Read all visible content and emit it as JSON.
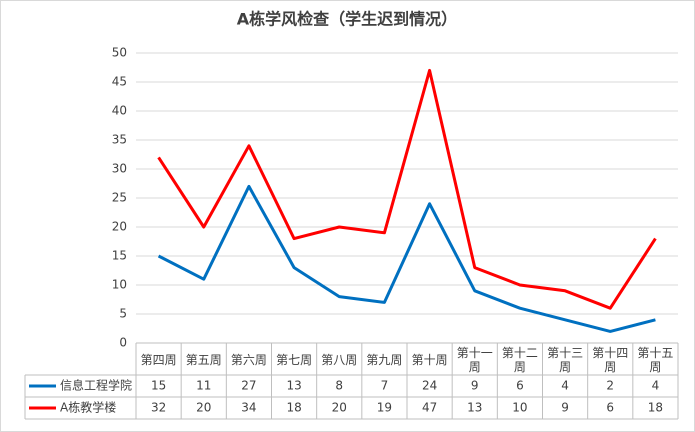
{
  "chart_data": {
    "type": "line",
    "title": "A栋学风检查（学生迟到情况）",
    "categories": [
      "第四周",
      "第五周",
      "第六周",
      "第七周",
      "第八周",
      "第九周",
      "第十周",
      "第十一周",
      "第十二周",
      "第十三周",
      "第十四周",
      "第十五周"
    ],
    "series": [
      {
        "name": "信息工程学院",
        "color": "#0070c0",
        "values": [
          15,
          11,
          27,
          13,
          8,
          7,
          24,
          9,
          6,
          4,
          2,
          4
        ]
      },
      {
        "name": "A栋教学楼",
        "color": "#ff0000",
        "values": [
          32,
          20,
          34,
          18,
          20,
          19,
          47,
          13,
          10,
          9,
          6,
          18
        ]
      }
    ],
    "ylim": [
      0,
      50
    ],
    "yticks": [
      0,
      5,
      10,
      15,
      20,
      25,
      30,
      35,
      40,
      45,
      50
    ],
    "grid": true
  }
}
